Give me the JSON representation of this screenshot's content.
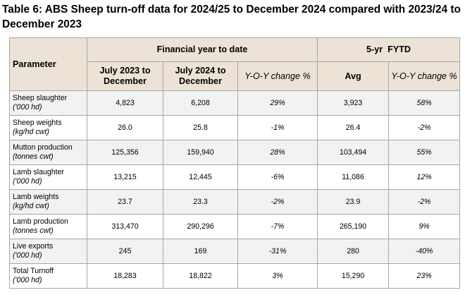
{
  "title": "Table 6: ABS Sheep turn-off data for 2024/25 to December 2024 compared with 2023/24 to December 2023",
  "headers": {
    "parameter": "Parameter",
    "group_fytd": "Financial year to date",
    "group_5yr": "5-yr  FYTD",
    "col_2023": "July 2023 to December",
    "col_2024": "July 2024 to December",
    "col_yoy": "Y-O-Y change %",
    "col_avg": "Avg",
    "col_yoy2": "Y-O-Y change %"
  },
  "rows": [
    {
      "name": "Sheep slaughter",
      "unit": "('000 hd)",
      "v2023": "4,823",
      "v2024": "6,208",
      "yoy": "29%",
      "avg": "3,923",
      "yoy5": "58%"
    },
    {
      "name": "Sheep weights",
      "unit": "(kg/hd cwt)",
      "v2023": "26.0",
      "v2024": "25.8",
      "yoy": "-1%",
      "avg": "26.4",
      "yoy5": "-2%"
    },
    {
      "name": "Mutton production",
      "unit": "(tonnes cwt)",
      "v2023": "125,356",
      "v2024": "159,940",
      "yoy": "28%",
      "avg": "103,494",
      "yoy5": "55%"
    },
    {
      "name": "Lamb slaughter",
      "unit": "('000 hd)",
      "v2023": "13,215",
      "v2024": "12,445",
      "yoy": "-6%",
      "avg": "11,086",
      "yoy5": "12%"
    },
    {
      "name": "Lamb weights",
      "unit": "(kg/hd cwt)",
      "v2023": "23.7",
      "v2024": "23.3",
      "yoy": "-2%",
      "avg": "23.9",
      "yoy5": "-2%"
    },
    {
      "name": "Lamb production",
      "unit": "(tonnes cwt)",
      "v2023": "313,470",
      "v2024": "290,296",
      "yoy": "-7%",
      "avg": "265,190",
      "yoy5": "9%"
    },
    {
      "name": "Live exports",
      "unit": "('000 hd)",
      "v2023": "245",
      "v2024": "169",
      "yoy": "-31%",
      "avg": "280",
      "yoy5": "-40%"
    },
    {
      "name": "Total Turnoff",
      "unit": "('000 hd)",
      "v2023": "18,283",
      "v2024": "18,822",
      "yoy": "3%",
      "avg": "15,290",
      "yoy5": "23%"
    }
  ]
}
